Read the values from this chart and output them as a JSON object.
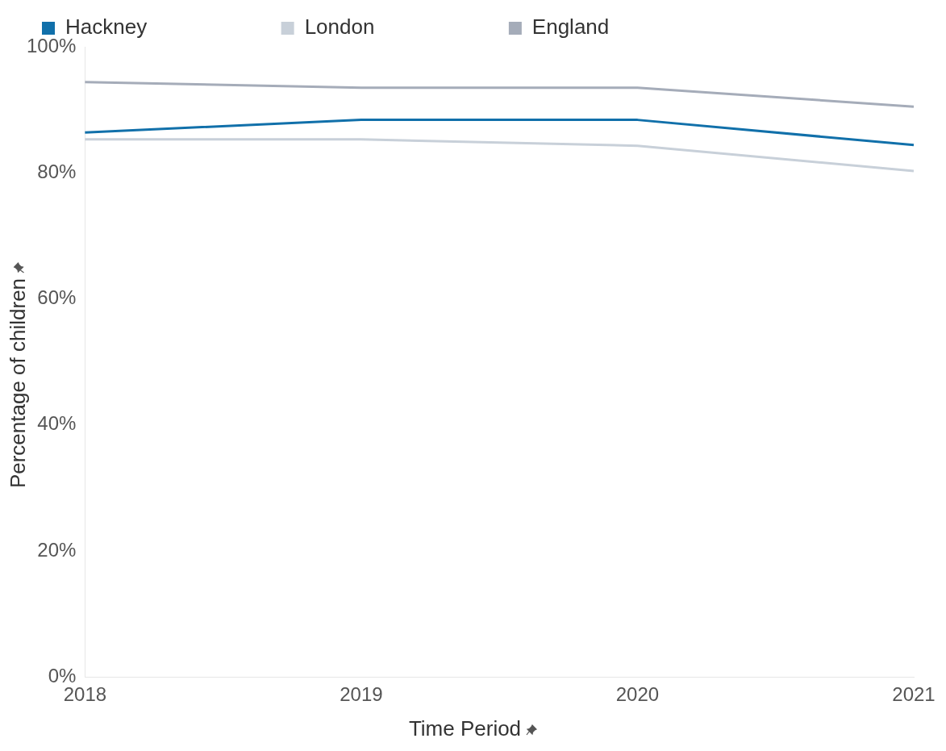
{
  "chart_data": {
    "type": "line",
    "xlabel": "Time Period",
    "ylabel": "Percentage of children",
    "categories": [
      "2018",
      "2019",
      "2020",
      "2021"
    ],
    "series": [
      {
        "name": "Hackney",
        "color": "#1170aa",
        "values": [
          86.4,
          88.4,
          88.4,
          84.4
        ]
      },
      {
        "name": "London",
        "color": "#c8d0d9",
        "values": [
          85.3,
          85.3,
          84.3,
          80.3
        ]
      },
      {
        "name": "England",
        "color": "#a5acb9",
        "values": [
          94.4,
          93.5,
          93.5,
          90.5
        ]
      }
    ],
    "ylim": [
      0,
      100
    ],
    "yticks": [
      {
        "value": 0,
        "label": "0%"
      },
      {
        "value": 20,
        "label": "20%"
      },
      {
        "value": 40,
        "label": "40%"
      },
      {
        "value": 60,
        "label": "60%"
      },
      {
        "value": 80,
        "label": "80%"
      },
      {
        "value": 100,
        "label": "100%"
      }
    ],
    "grid": false,
    "legend": "top left",
    "marker": "none",
    "line_style": "solid"
  }
}
